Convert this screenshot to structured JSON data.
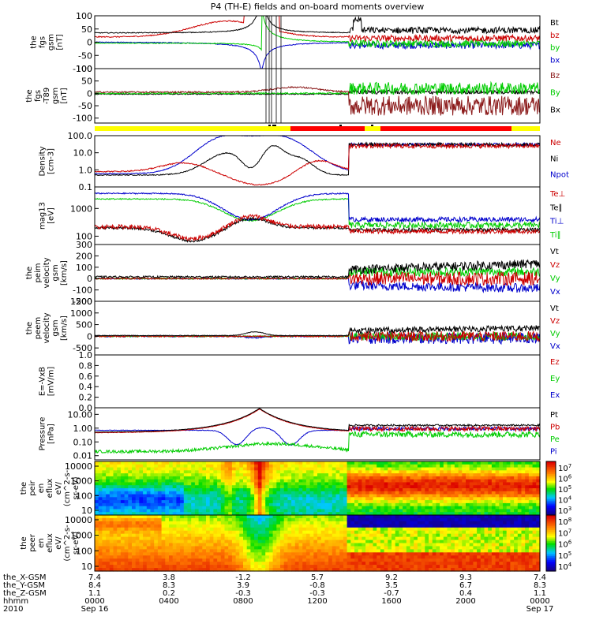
{
  "chart_data": {
    "type": "line",
    "title": "P4 (TH-E) fields and on-board moments overview",
    "x_ticks": [
      "0000",
      "0400",
      "0800",
      "1200",
      "1600",
      "2000",
      "0000"
    ],
    "x_date_labels": [
      "Sep 16",
      "Sep 17"
    ],
    "x_row_labels": [
      "the_X-GSM",
      "the_Y-GSM",
      "the_Z-GSM",
      "hhmm",
      "2010"
    ],
    "x_row_values": [
      [
        "7.4",
        "3.8",
        "-1.2",
        "5.7",
        "9.2",
        "9.3",
        "7.4"
      ],
      [
        "8.4",
        "8.3",
        "3.9",
        "-0.8",
        "3.5",
        "6.7",
        "8.3"
      ],
      [
        "1.1",
        "0.2",
        "-0.3",
        "-0.3",
        "-0.7",
        "0.4",
        "1.1"
      ]
    ],
    "flag_bar_colors": [
      "#ffff00",
      "#ff0000",
      "#000000"
    ],
    "panels": [
      {
        "ylabel": [
          "the",
          "fgs",
          "gsm",
          "[nT]"
        ],
        "ylim": [
          -100,
          100
        ],
        "scale": "linear",
        "yticks": [
          "100",
          "50",
          "0",
          "-50",
          "-100"
        ],
        "series": [
          {
            "name": "Bt",
            "color": "#000000",
            "kind": "bt"
          },
          {
            "name": "bz",
            "color": "#cc0000",
            "kind": "bz"
          },
          {
            "name": "by",
            "color": "#00cc00",
            "kind": "by"
          },
          {
            "name": "bx",
            "color": "#0000cc",
            "kind": "bx"
          }
        ]
      },
      {
        "ylabel": [
          "the",
          "fgs",
          "-T89",
          "gsm",
          "[nT]"
        ],
        "ylim": [
          -120,
          100
        ],
        "scale": "linear",
        "yticks": [
          "100",
          "50",
          "0",
          "-50",
          "-100"
        ],
        "series": [
          {
            "name": "Bz",
            "color": "#8b1a1a",
            "kind": "dbz"
          },
          {
            "name": "By",
            "color": "#00cc00",
            "kind": "dby"
          },
          {
            "name": "Bx",
            "color": "#000000",
            "kind": "dbx"
          }
        ]
      },
      {
        "ylabel": [
          "Density",
          "[cm-3]"
        ],
        "ylim": [
          0.1,
          100
        ],
        "scale": "log",
        "yticks": [
          "100.0",
          "10.0",
          "1.0",
          "0.1"
        ],
        "series": [
          {
            "name": "Ne",
            "color": "#cc0000",
            "kind": "ne"
          },
          {
            "name": "Ni",
            "color": "#000000",
            "kind": "ni"
          },
          {
            "name": "Npot",
            "color": "#0000cc",
            "kind": "npot"
          }
        ]
      },
      {
        "ylabel": [
          "mag13",
          "[eV]"
        ],
        "ylim": [
          50,
          6000
        ],
        "scale": "log",
        "yticks": [
          "1000",
          "100"
        ],
        "series": [
          {
            "name": "Te⊥",
            "color": "#cc0000",
            "kind": "teperp"
          },
          {
            "name": "Te∥",
            "color": "#000000",
            "kind": "tepar"
          },
          {
            "name": "Ti⊥",
            "color": "#0000cc",
            "kind": "tiperp"
          },
          {
            "name": "Ti∥",
            "color": "#00cc00",
            "kind": "tipar"
          }
        ]
      },
      {
        "ylabel": [
          "the",
          "peim",
          "velocity",
          "gsm",
          "[km/s]"
        ],
        "ylim": [
          -200,
          300
        ],
        "scale": "linear",
        "yticks": [
          "300",
          "200",
          "100",
          "0",
          "-100",
          "-200"
        ],
        "series": [
          {
            "name": "Vt",
            "color": "#000000",
            "kind": "vt"
          },
          {
            "name": "Vz",
            "color": "#cc0000",
            "kind": "vz"
          },
          {
            "name": "Vy",
            "color": "#00cc00",
            "kind": "vy"
          },
          {
            "name": "Vx",
            "color": "#0000cc",
            "kind": "vx"
          }
        ]
      },
      {
        "ylabel": [
          "the",
          "peem",
          "velocity",
          "gsm",
          "[km/s]"
        ],
        "ylim": [
          -800,
          1500
        ],
        "scale": "linear",
        "yticks": [
          "1500",
          "1000",
          "500",
          "0",
          "-500"
        ],
        "series": [
          {
            "name": "Vt",
            "color": "#000000",
            "kind": "evt"
          },
          {
            "name": "Vz",
            "color": "#cc0000",
            "kind": "evz"
          },
          {
            "name": "Vy",
            "color": "#00cc00",
            "kind": "evy"
          },
          {
            "name": "Vx",
            "color": "#0000cc",
            "kind": "evx"
          }
        ]
      },
      {
        "ylabel": [
          "E=-VxB",
          "[mV/m]"
        ],
        "ylim": [
          0,
          1
        ],
        "scale": "linear",
        "yticks": [
          "1.0",
          "0.8",
          "0.6",
          "0.4",
          "0.2",
          "0.0"
        ],
        "series": [
          {
            "name": "Ez",
            "color": "#cc0000",
            "kind": "none"
          },
          {
            "name": "Ey",
            "color": "#00cc00",
            "kind": "none"
          },
          {
            "name": "Ex",
            "color": "#0000cc",
            "kind": "none"
          }
        ]
      },
      {
        "ylabel": [
          "Pressure",
          "[nPa]"
        ],
        "ylim": [
          0.005,
          30
        ],
        "scale": "log",
        "yticks": [
          "10.00",
          "1.00",
          "0.10",
          "0.01"
        ],
        "series": [
          {
            "name": "Pt",
            "color": "#000000",
            "kind": "pt"
          },
          {
            "name": "Pb",
            "color": "#cc0000",
            "kind": "pb"
          },
          {
            "name": "Pe",
            "color": "#00cc00",
            "kind": "pe"
          },
          {
            "name": "Pi",
            "color": "#0000cc",
            "kind": "pi"
          }
        ]
      }
    ],
    "spectrograms": [
      {
        "ylabel": [
          "the",
          "peir",
          "en",
          "eflux",
          "eV/",
          "(cm^2-s-",
          "sr-eV)"
        ],
        "yticks": [
          "10000",
          "1000",
          "100",
          "10"
        ],
        "colorbar_ticks": [
          "10^7",
          "10^6",
          "10^5",
          "10^4",
          "10^3"
        ]
      },
      {
        "ylabel": [
          "the",
          "peer",
          "en",
          "eflux",
          "eV/",
          "(cm^2-s-",
          "sr-eV)"
        ],
        "yticks": [
          "10000",
          "1000",
          "100",
          "10"
        ],
        "colorbar_ticks": [
          "10^8",
          "10^7",
          "10^6",
          "10^5",
          "10^4"
        ]
      }
    ]
  }
}
